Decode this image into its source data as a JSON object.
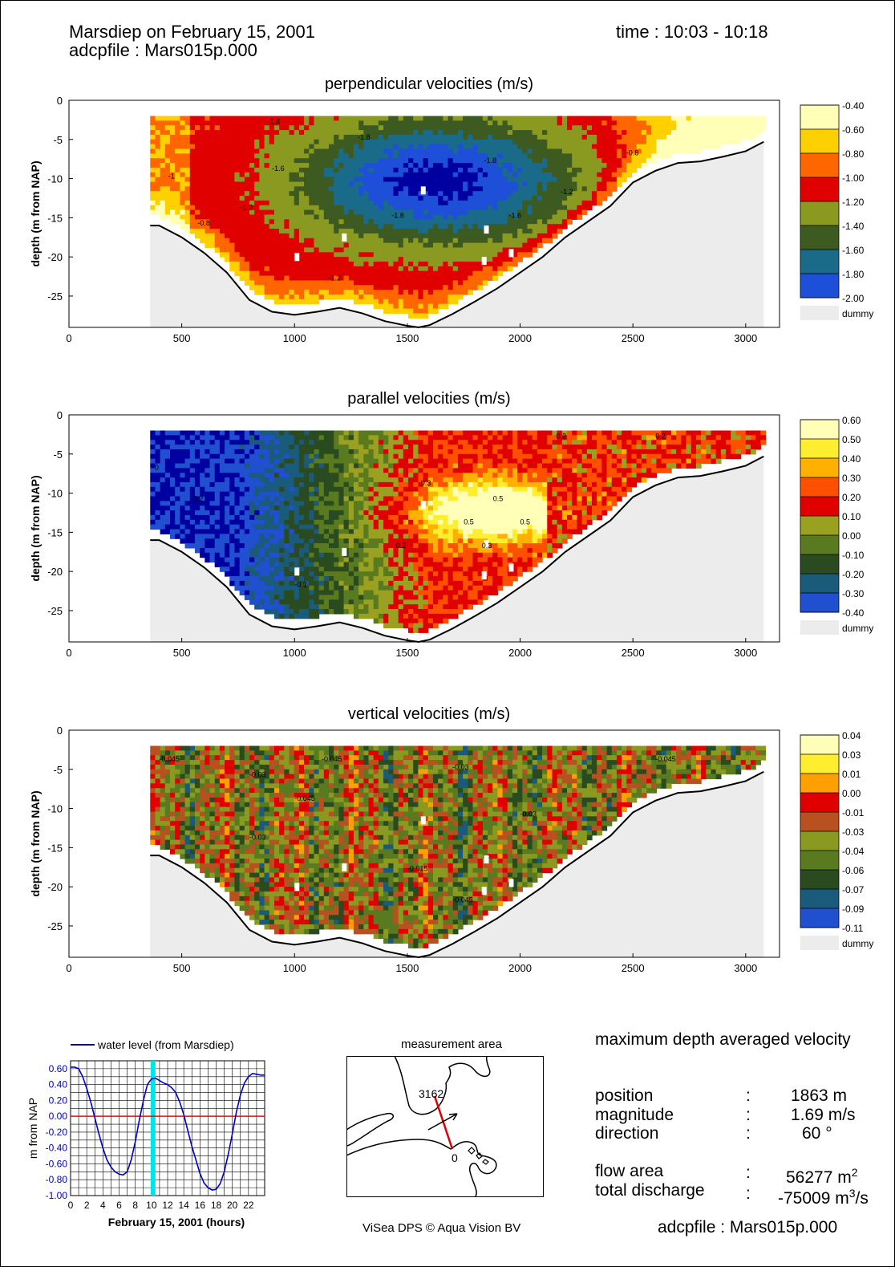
{
  "header": {
    "title": "Marsdiep on February 15, 2001",
    "file_line": "adcpfile : Mars015p.000",
    "time": "time : 10:03 - 10:18"
  },
  "panels": [
    {
      "title": "perpendicular velocities (m/s)",
      "ylabel": "depth (m from NAP)",
      "cb_labels": [
        "-0.40",
        "-0.60",
        "-0.80",
        "-1.00",
        "-1.20",
        "-1.40",
        "-1.60",
        "-1.80",
        "-2.00"
      ],
      "cb_colors": [
        "#ffffb8",
        "#ffd000",
        "#ff6600",
        "#e00000",
        "#8a9a20",
        "#3d5a20",
        "#1a6a8a",
        "#1e4fd8",
        "#0000a0"
      ],
      "dummy": "dummy",
      "contours": [
        {
          "x": 880,
          "y": -3,
          "t": "-1.8"
        },
        {
          "x": 1280,
          "y": -5,
          "t": "-1.8"
        },
        {
          "x": 1840,
          "y": -8,
          "t": "-1.8"
        },
        {
          "x": 440,
          "y": -10,
          "t": "-1"
        },
        {
          "x": 900,
          "y": -9,
          "t": "-1.6"
        },
        {
          "x": 1430,
          "y": -15,
          "t": "-1.8"
        },
        {
          "x": 1950,
          "y": -15,
          "t": "-1.6"
        },
        {
          "x": 570,
          "y": -16,
          "t": "-0.8"
        },
        {
          "x": 1150,
          "y": -23,
          "t": "-1.2"
        },
        {
          "x": 2470,
          "y": -7,
          "t": "-0.8"
        },
        {
          "x": 2180,
          "y": -12,
          "t": "-1.2"
        },
        {
          "x": 760,
          "y": -14,
          "t": "-1.2"
        }
      ]
    },
    {
      "title": "parallel velocities (m/s)",
      "ylabel": "depth (m from NAP)",
      "cb_labels": [
        "0.60",
        "0.50",
        "0.40",
        "0.30",
        "0.20",
        "0.10",
        "0.00",
        "-0.10",
        "-0.20",
        "-0.30",
        "-0.40"
      ],
      "cb_colors": [
        "#ffffb8",
        "#ffee30",
        "#ffb000",
        "#ff5000",
        "#e00000",
        "#9aa020",
        "#5a7a20",
        "#2a4a20",
        "#1a5a7a",
        "#2050d0",
        "#0000a0"
      ],
      "dummy": "dummy",
      "contours": [
        {
          "x": 380,
          "y": -7,
          "t": "0"
        },
        {
          "x": 540,
          "y": -11,
          "t": "-0.2"
        },
        {
          "x": 1560,
          "y": -9,
          "t": "0.3"
        },
        {
          "x": 1750,
          "y": -14,
          "t": "0.5"
        },
        {
          "x": 1880,
          "y": -11,
          "t": "0.5"
        },
        {
          "x": 2000,
          "y": -14,
          "t": "0.5"
        },
        {
          "x": 1450,
          "y": -17,
          "t": "0.2"
        },
        {
          "x": 1830,
          "y": -17,
          "t": "0.3"
        },
        {
          "x": 1000,
          "y": -22,
          "t": "-0.1"
        },
        {
          "x": 2160,
          "y": -3,
          "t": "0.2"
        },
        {
          "x": 2600,
          "y": -3,
          "t": "0.2"
        }
      ]
    },
    {
      "title": "vertical velocities (m/s)",
      "ylabel": "depth (m from NAP)",
      "cb_labels": [
        "0.04",
        "0.03",
        "0.01",
        "0.00",
        "-0.01",
        "-0.03",
        "-0.04",
        "-0.06",
        "-0.07",
        "-0.09",
        "-0.11"
      ],
      "cb_colors": [
        "#ffffb8",
        "#ffee30",
        "#ffa000",
        "#e00000",
        "#b85020",
        "#8a9a20",
        "#5a7a20",
        "#2a4a20",
        "#1a5a7a",
        "#2050d0",
        "#0000a0"
      ],
      "dummy": "dummy",
      "contours": [
        {
          "x": 400,
          "y": -4,
          "t": "-0.045"
        },
        {
          "x": 800,
          "y": -6,
          "t": "-0.03"
        },
        {
          "x": 1120,
          "y": -4,
          "t": "-0.045"
        },
        {
          "x": 1700,
          "y": -5,
          "t": "-0.03"
        },
        {
          "x": 2600,
          "y": -4,
          "t": "-0.045"
        },
        {
          "x": 1000,
          "y": -9,
          "t": "-0.045"
        },
        {
          "x": 2000,
          "y": -11,
          "t": "-0.03"
        },
        {
          "x": 1500,
          "y": -18,
          "t": "-0.015"
        },
        {
          "x": 1700,
          "y": -22,
          "t": "-0.045"
        },
        {
          "x": 800,
          "y": -14,
          "t": "-0.03"
        }
      ]
    }
  ],
  "chart_data": [
    {
      "type": "heatmap",
      "title": "perpendicular velocities (m/s)",
      "ylabel": "depth (m from NAP)",
      "xlim": [
        0,
        3150
      ],
      "ylim": [
        -29,
        0
      ],
      "x_ticks": [
        0,
        500,
        1000,
        1500,
        2000,
        2500,
        3000
      ],
      "y_ticks": [
        0,
        -5,
        -10,
        -15,
        -20,
        -25
      ],
      "colorbar": [
        -0.4,
        -0.6,
        -0.8,
        -1.0,
        -1.2,
        -1.4,
        -1.6,
        -1.8,
        -2.0
      ],
      "bottom_profile": {
        "x": [
          360,
          400,
          500,
          600,
          700,
          800,
          900,
          1000,
          1100,
          1200,
          1300,
          1400,
          1500,
          1550,
          1600,
          1700,
          1800,
          1900,
          2000,
          2100,
          2200,
          2300,
          2400,
          2500,
          2600,
          2700,
          2800,
          2900,
          3000,
          3080
        ],
        "y": [
          -16,
          -16,
          -17.5,
          -19.5,
          -22,
          -25.5,
          -27,
          -27.4,
          -27,
          -26.5,
          -27.2,
          -28.2,
          -28.8,
          -29,
          -28.7,
          -27.3,
          -25.7,
          -24,
          -22,
          -20,
          -17.5,
          -15.5,
          -13.5,
          -10.5,
          -9,
          -8,
          -7.8,
          -7.2,
          -6.5,
          -5.3
        ]
      },
      "data_top": -2,
      "field_model": "perpendicular"
    },
    {
      "type": "heatmap",
      "title": "parallel velocities (m/s)",
      "ylabel": "depth (m from NAP)",
      "xlim": [
        0,
        3150
      ],
      "ylim": [
        -29,
        0
      ],
      "x_ticks": [
        0,
        500,
        1000,
        1500,
        2000,
        2500,
        3000
      ],
      "y_ticks": [
        0,
        -5,
        -10,
        -15,
        -20,
        -25
      ],
      "colorbar": [
        0.6,
        0.5,
        0.4,
        0.3,
        0.2,
        0.1,
        0.0,
        -0.1,
        -0.2,
        -0.3,
        -0.4
      ],
      "data_top": -2,
      "field_model": "parallel"
    },
    {
      "type": "heatmap",
      "title": "vertical velocities (m/s)",
      "ylabel": "depth (m from NAP)",
      "xlim": [
        0,
        3150
      ],
      "ylim": [
        -29,
        0
      ],
      "x_ticks": [
        0,
        500,
        1000,
        1500,
        2000,
        2500,
        3000
      ],
      "y_ticks": [
        0,
        -5,
        -10,
        -15,
        -20,
        -25
      ],
      "colorbar": [
        0.04,
        0.03,
        0.01,
        0.0,
        -0.01,
        -0.03,
        -0.04,
        -0.06,
        -0.07,
        -0.09,
        -0.11
      ],
      "data_top": -2,
      "field_model": "vertical"
    },
    {
      "type": "line",
      "title": "",
      "legend": "water level   (from Marsdiep)",
      "xlabel": "February 15, 2001   (hours)",
      "ylabel": "m from NAP",
      "xlim": [
        0,
        24
      ],
      "ylim": [
        -1.0,
        0.7
      ],
      "x_ticks": [
        0,
        2,
        4,
        6,
        8,
        10,
        12,
        14,
        16,
        18,
        20,
        22
      ],
      "y_ticks": [
        "0.60",
        "0.40",
        "0.20",
        "0.00",
        "-0.20",
        "-0.40",
        "-0.60",
        "-0.80",
        "-1.00"
      ],
      "series": [
        {
          "name": "water level   (from Marsdiep)",
          "x": [
            0,
            0.5,
            1,
            1.5,
            2,
            2.5,
            3,
            3.5,
            4,
            4.5,
            5,
            5.5,
            6,
            6.5,
            7,
            7.5,
            8,
            8.5,
            9,
            9.5,
            10,
            10.5,
            11,
            11.5,
            12,
            12.5,
            13,
            13.5,
            14,
            14.5,
            15,
            15.5,
            16,
            16.5,
            17,
            17.5,
            18,
            18.5,
            19,
            19.5,
            20,
            20.5,
            21,
            21.5,
            22,
            22.5,
            23,
            23.5,
            24
          ],
          "y": [
            0.62,
            0.62,
            0.6,
            0.5,
            0.35,
            0.18,
            -0.02,
            -0.22,
            -0.4,
            -0.55,
            -0.64,
            -0.7,
            -0.73,
            -0.74,
            -0.7,
            -0.55,
            -0.32,
            -0.05,
            0.2,
            0.4,
            0.47,
            0.48,
            0.45,
            0.42,
            0.4,
            0.36,
            0.3,
            0.18,
            0.02,
            -0.18,
            -0.38,
            -0.55,
            -0.72,
            -0.84,
            -0.9,
            -0.93,
            -0.92,
            -0.85,
            -0.7,
            -0.48,
            -0.22,
            0.05,
            0.27,
            0.42,
            0.5,
            0.54,
            0.53,
            0.52,
            0.52
          ]
        }
      ],
      "reference_line": 0.0,
      "time_marker": 10.2
    }
  ],
  "tide": {
    "legend": "water level   (from Marsdiep)",
    "ylabel": "m from NAP",
    "xlabel": "February 15, 2001   (hours)",
    "y_ticks": [
      "0.60",
      "0.40",
      "0.20",
      "0.00",
      "-0.20",
      "-0.40",
      "-0.60",
      "-0.80",
      "-1.00"
    ],
    "x_ticks": [
      "0",
      "2",
      "4",
      "6",
      "8",
      "10",
      "12",
      "14",
      "16",
      "18",
      "20",
      "22"
    ]
  },
  "map": {
    "title": "measurement area",
    "end_label": "3162",
    "start_label": "0"
  },
  "results": {
    "heading": "maximum depth averaged velocity",
    "rows": [
      {
        "label": "position",
        "sep": ":",
        "value": "1863 m"
      },
      {
        "label": "magnitude",
        "sep": ":",
        "value": "1.69 m/s"
      },
      {
        "label": "direction",
        "sep": ":",
        "value": "60 °"
      }
    ],
    "flow_area": {
      "label": "flow area",
      "sep": ":",
      "value": "56277 m",
      "sup": "2"
    },
    "discharge": {
      "label": "total discharge",
      "sep": ":",
      "value": "-75009 m",
      "sup": "3",
      "tail": "/s"
    }
  },
  "footer": {
    "credit": "ViSea DPS © Aqua Vision BV",
    "file": "adcpfile : Mars015p.000"
  },
  "colors": {
    "accent_line": "#0000cc",
    "zero_line": "#ff0000",
    "time_marker": "#00e5e5",
    "dummy": "#ececec",
    "transect": "#dd0000"
  }
}
